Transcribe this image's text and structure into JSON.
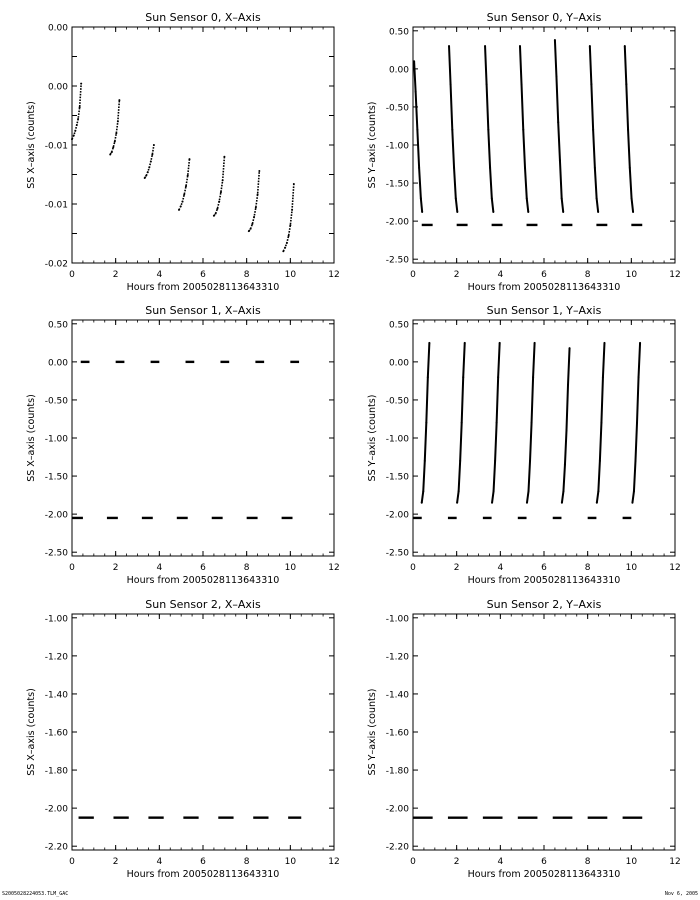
{
  "footer": {
    "left": "S2005028224053.TLM_GAC",
    "right": "Nov 6, 2005"
  },
  "chart_data": [
    {
      "type": "scatter",
      "title": "Sun Sensor 0, X–Axis",
      "xlabel": "Hours from 2005028113643310",
      "ylabel": "SS X–axis (counts)",
      "xlim": [
        0,
        12
      ],
      "ylim": [
        -0.02,
        0.0
      ],
      "xticks": [
        0,
        2,
        4,
        6,
        8,
        10,
        12
      ],
      "xtick_labels": [
        "0",
        "2",
        "4",
        "6",
        "8",
        "10",
        "12"
      ],
      "yticks": [
        0.0,
        -0.0025,
        -0.005,
        -0.0075,
        -0.01,
        -0.0125,
        -0.015,
        -0.0175,
        -0.02
      ],
      "ytick_labels": [
        "0.00",
        "",
        "0.00",
        "",
        "-0.01",
        "",
        "-0.01",
        "",
        "-0.02"
      ],
      "series": [
        {
          "x": [
            0.0,
            0.08,
            0.15,
            0.22,
            0.28,
            0.35,
            0.42
          ],
          "y": [
            -0.0095,
            -0.0092,
            -0.0088,
            -0.0083,
            -0.0078,
            -0.0068,
            -0.0048
          ],
          "point": true
        },
        {
          "x": [
            1.75,
            1.82,
            1.89,
            1.96,
            2.03,
            2.1,
            2.17
          ],
          "y": [
            -0.0108,
            -0.0106,
            -0.0102,
            -0.0097,
            -0.009,
            -0.008,
            -0.0062
          ],
          "point": true
        },
        {
          "x": [
            3.33,
            3.4,
            3.47,
            3.54,
            3.61,
            3.68,
            3.75
          ],
          "y": [
            -0.0128,
            -0.0126,
            -0.0123,
            -0.0119,
            -0.0114,
            -0.0108,
            -0.01
          ],
          "point": true
        },
        {
          "x": [
            4.9,
            4.98,
            5.06,
            5.14,
            5.22,
            5.3,
            5.38
          ],
          "y": [
            -0.0155,
            -0.0152,
            -0.0148,
            -0.0142,
            -0.0135,
            -0.0126,
            -0.0112
          ],
          "point": true
        },
        {
          "x": [
            6.5,
            6.58,
            6.66,
            6.74,
            6.82,
            6.9,
            6.98
          ],
          "y": [
            -0.016,
            -0.0158,
            -0.0154,
            -0.0148,
            -0.014,
            -0.013,
            -0.011
          ],
          "point": true
        },
        {
          "x": [
            8.1,
            8.18,
            8.26,
            8.34,
            8.42,
            8.5,
            8.58
          ],
          "y": [
            -0.0173,
            -0.0171,
            -0.0167,
            -0.0161,
            -0.0153,
            -0.0142,
            -0.0122
          ],
          "point": true
        },
        {
          "x": [
            9.68,
            9.76,
            9.84,
            9.92,
            10.0,
            10.08,
            10.16
          ],
          "y": [
            -0.019,
            -0.0187,
            -0.0183,
            -0.0177,
            -0.0168,
            -0.0155,
            -0.0133
          ],
          "point": true
        }
      ]
    },
    {
      "type": "scatter",
      "title": "Sun Sensor 0, Y–Axis",
      "xlabel": "Hours from 2005028113643310",
      "ylabel": "SS Y–axis (counts)",
      "xlim": [
        0,
        12
      ],
      "ylim": [
        -2.55,
        0.55
      ],
      "xticks": [
        0,
        2,
        4,
        6,
        8,
        10,
        12
      ],
      "xtick_labels": [
        "0",
        "2",
        "4",
        "6",
        "8",
        "10",
        "12"
      ],
      "yticks": [
        0.5,
        0.0,
        -0.5,
        -1.0,
        -1.5,
        -2.0,
        -2.5
      ],
      "ytick_labels": [
        "0.50",
        "0.00",
        "-0.50",
        "-1.00",
        "-1.50",
        "-2.00",
        "-2.50"
      ],
      "series": [
        {
          "x": [
            0.05,
            0.12,
            0.2,
            0.28,
            0.36,
            0.42
          ],
          "y": [
            0.1,
            -0.3,
            -0.8,
            -1.3,
            -1.7,
            -1.88
          ]
        },
        {
          "x": [
            1.65,
            1.72,
            1.8,
            1.88,
            1.96,
            2.03
          ],
          "y": [
            0.3,
            -0.2,
            -0.8,
            -1.3,
            -1.7,
            -1.88
          ]
        },
        {
          "x": [
            3.3,
            3.37,
            3.45,
            3.53,
            3.61,
            3.68
          ],
          "y": [
            0.3,
            -0.2,
            -0.8,
            -1.3,
            -1.7,
            -1.88
          ]
        },
        {
          "x": [
            4.9,
            4.97,
            5.05,
            5.13,
            5.21,
            5.28
          ],
          "y": [
            0.3,
            -0.2,
            -0.8,
            -1.3,
            -1.7,
            -1.88
          ]
        },
        {
          "x": [
            6.5,
            6.57,
            6.65,
            6.73,
            6.81,
            6.88
          ],
          "y": [
            0.38,
            -0.1,
            -0.7,
            -1.2,
            -1.7,
            -1.88
          ]
        },
        {
          "x": [
            8.1,
            8.17,
            8.25,
            8.33,
            8.41,
            8.48
          ],
          "y": [
            0.3,
            -0.2,
            -0.8,
            -1.3,
            -1.7,
            -1.88
          ]
        },
        {
          "x": [
            9.7,
            9.77,
            9.85,
            9.93,
            10.01,
            10.08
          ],
          "y": [
            0.3,
            -0.2,
            -0.8,
            -1.3,
            -1.7,
            -1.88
          ]
        },
        {
          "segments": [
            [
              0.4,
              0.9
            ],
            [
              2.0,
              2.5
            ],
            [
              3.6,
              4.1
            ],
            [
              5.2,
              5.7
            ],
            [
              6.8,
              7.3
            ],
            [
              8.4,
              8.9
            ],
            [
              10.0,
              10.5
            ]
          ],
          "y": -2.05
        }
      ]
    },
    {
      "type": "scatter",
      "title": "Sun Sensor 1, X–Axis",
      "xlabel": "Hours from 2005028113643310",
      "ylabel": "SS X–axis (counts)",
      "xlim": [
        0,
        12
      ],
      "ylim": [
        -2.55,
        0.55
      ],
      "xticks": [
        0,
        2,
        4,
        6,
        8,
        10,
        12
      ],
      "xtick_labels": [
        "0",
        "2",
        "4",
        "6",
        "8",
        "10",
        "12"
      ],
      "yticks": [
        0.5,
        0.0,
        -0.5,
        -1.0,
        -1.5,
        -2.0,
        -2.5
      ],
      "ytick_labels": [
        "0.50",
        "0.00",
        "-0.50",
        "-1.00",
        "-1.50",
        "-2.00",
        "-2.50"
      ],
      "series": [
        {
          "segments": [
            [
              0.4,
              0.8
            ],
            [
              2.0,
              2.4
            ],
            [
              3.6,
              4.0
            ],
            [
              5.2,
              5.6
            ],
            [
              6.8,
              7.2
            ],
            [
              8.4,
              8.8
            ],
            [
              10.0,
              10.4
            ]
          ],
          "y": 0.0
        },
        {
          "segments": [
            [
              0.0,
              0.5
            ],
            [
              1.6,
              2.1
            ],
            [
              3.2,
              3.7
            ],
            [
              4.8,
              5.3
            ],
            [
              6.4,
              6.9
            ],
            [
              8.0,
              8.5
            ],
            [
              9.6,
              10.1
            ]
          ],
          "y": -2.05
        }
      ]
    },
    {
      "type": "scatter",
      "title": "Sun Sensor 1, Y–Axis",
      "xlabel": "Hours from 2005028113643310",
      "ylabel": "SS Y–axis (counts)",
      "xlim": [
        0,
        12
      ],
      "ylim": [
        -2.55,
        0.55
      ],
      "xticks": [
        0,
        2,
        4,
        6,
        8,
        10,
        12
      ],
      "xtick_labels": [
        "0",
        "2",
        "4",
        "6",
        "8",
        "10",
        "12"
      ],
      "yticks": [
        0.5,
        0.0,
        -0.5,
        -1.0,
        -1.5,
        -2.0,
        -2.5
      ],
      "ytick_labels": [
        "0.50",
        "0.00",
        "-0.50",
        "-1.00",
        "-1.50",
        "-2.00",
        "-2.50"
      ],
      "series": [
        {
          "x": [
            0.4,
            0.47,
            0.54,
            0.61,
            0.68,
            0.75
          ],
          "y": [
            -1.85,
            -1.7,
            -1.3,
            -0.8,
            -0.2,
            0.25
          ]
        },
        {
          "x": [
            2.02,
            2.09,
            2.16,
            2.23,
            2.3,
            2.37
          ],
          "y": [
            -1.85,
            -1.7,
            -1.3,
            -0.8,
            -0.2,
            0.25
          ]
        },
        {
          "x": [
            3.62,
            3.69,
            3.76,
            3.83,
            3.9,
            3.97
          ],
          "y": [
            -1.85,
            -1.7,
            -1.3,
            -0.8,
            -0.2,
            0.25
          ]
        },
        {
          "x": [
            5.22,
            5.29,
            5.36,
            5.43,
            5.5,
            5.57
          ],
          "y": [
            -1.85,
            -1.7,
            -1.3,
            -0.8,
            -0.2,
            0.25
          ]
        },
        {
          "x": [
            6.82,
            6.89,
            6.96,
            7.03,
            7.1,
            7.17
          ],
          "y": [
            -1.85,
            -1.7,
            -1.35,
            -0.9,
            -0.3,
            0.18
          ]
        },
        {
          "x": [
            8.42,
            8.49,
            8.56,
            8.63,
            8.7,
            8.77
          ],
          "y": [
            -1.85,
            -1.7,
            -1.3,
            -0.8,
            -0.2,
            0.25
          ]
        },
        {
          "x": [
            10.05,
            10.12,
            10.19,
            10.26,
            10.33,
            10.4
          ],
          "y": [
            -1.85,
            -1.7,
            -1.3,
            -0.8,
            -0.2,
            0.25
          ]
        },
        {
          "segments": [
            [
              0.0,
              0.4
            ],
            [
              1.6,
              2.0
            ],
            [
              3.2,
              3.6
            ],
            [
              4.8,
              5.2
            ],
            [
              6.4,
              6.8
            ],
            [
              8.0,
              8.4
            ],
            [
              9.6,
              10.0
            ]
          ],
          "y": -2.05
        }
      ]
    },
    {
      "type": "scatter",
      "title": "Sun Sensor 2, X–Axis",
      "xlabel": "Hours from 2005028113643310",
      "ylabel": "SS X–axis (counts)",
      "xlim": [
        0,
        12
      ],
      "ylim": [
        -2.22,
        -0.98
      ],
      "xticks": [
        0,
        2,
        4,
        6,
        8,
        10,
        12
      ],
      "xtick_labels": [
        "0",
        "2",
        "4",
        "6",
        "8",
        "10",
        "12"
      ],
      "yticks": [
        -1.0,
        -1.2,
        -1.4,
        -1.6,
        -1.8,
        -2.0,
        -2.2
      ],
      "ytick_labels": [
        "-1.00",
        "-1.20",
        "-1.40",
        "-1.60",
        "-1.80",
        "-2.00",
        "-2.20"
      ],
      "series": [
        {
          "segments": [
            [
              0.3,
              1.0
            ],
            [
              1.9,
              2.6
            ],
            [
              3.5,
              4.2
            ],
            [
              5.1,
              5.8
            ],
            [
              6.7,
              7.4
            ],
            [
              8.3,
              9.0
            ],
            [
              9.9,
              10.5
            ]
          ],
          "y": -2.05
        }
      ]
    },
    {
      "type": "scatter",
      "title": "Sun Sensor 2, Y–Axis",
      "xlabel": "Hours from 2005028113643310",
      "ylabel": "SS Y–axis (counts)",
      "xlim": [
        0,
        12
      ],
      "ylim": [
        -2.22,
        -0.98
      ],
      "xticks": [
        0,
        2,
        4,
        6,
        8,
        10,
        12
      ],
      "xtick_labels": [
        "0",
        "2",
        "4",
        "6",
        "8",
        "10",
        "12"
      ],
      "yticks": [
        -1.0,
        -1.2,
        -1.4,
        -1.6,
        -1.8,
        -2.0,
        -2.2
      ],
      "ytick_labels": [
        "-1.00",
        "-1.20",
        "-1.40",
        "-1.60",
        "-1.80",
        "-2.00",
        "-2.20"
      ],
      "series": [
        {
          "segments": [
            [
              0.0,
              0.9
            ],
            [
              1.6,
              2.5
            ],
            [
              3.2,
              4.1
            ],
            [
              4.8,
              5.7
            ],
            [
              6.4,
              7.3
            ],
            [
              8.0,
              8.9
            ],
            [
              9.6,
              10.5
            ]
          ],
          "y": -2.05
        }
      ]
    }
  ]
}
